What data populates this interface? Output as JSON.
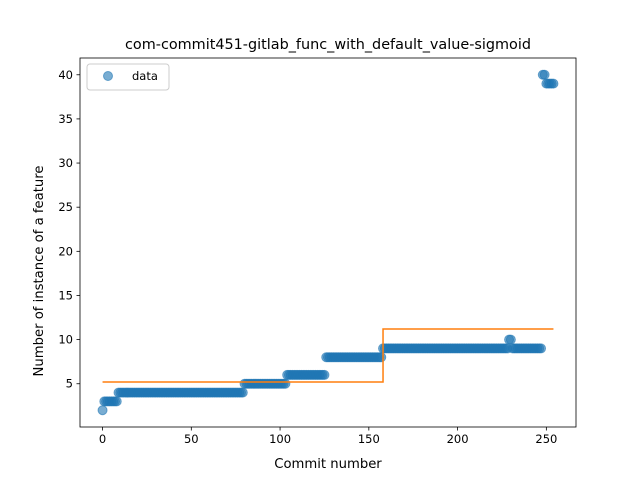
{
  "chart_data": {
    "type": "scatter",
    "title": "com-commit451-gitlab_func_with_default_value-sigmoid",
    "xlabel": "Commit number",
    "ylabel": "Number of instance of a feature",
    "xlim": [
      -12.7,
      266.7
    ],
    "ylim": [
      0.1,
      41.9
    ],
    "xticks": [
      0,
      50,
      100,
      150,
      200,
      250
    ],
    "yticks": [
      5,
      10,
      15,
      20,
      25,
      30,
      35,
      40
    ],
    "grid": false,
    "legend": {
      "position": "upper-left",
      "entries": [
        {
          "label": "data",
          "marker": "circle"
        }
      ]
    },
    "colors": {
      "data": "#1f77b4",
      "fit": "#ff7f0e"
    },
    "series": [
      {
        "name": "data",
        "kind": "scatter",
        "segments": [
          {
            "x_start": 0,
            "x_end": 0,
            "y": 2
          },
          {
            "x_start": 1,
            "x_end": 8,
            "y": 3
          },
          {
            "x_start": 9,
            "x_end": 79,
            "y": 4
          },
          {
            "x_start": 80,
            "x_end": 103,
            "y": 5
          },
          {
            "x_start": 104,
            "x_end": 125,
            "y": 6
          },
          {
            "x_start": 126,
            "x_end": 157,
            "y": 8
          },
          {
            "x_start": 158,
            "x_end": 228,
            "y": 9
          },
          {
            "x_start": 229,
            "x_end": 230,
            "y": 10
          },
          {
            "x_start": 231,
            "x_end": 247,
            "y": 9
          },
          {
            "x_start": 248,
            "x_end": 249,
            "y": 40
          },
          {
            "x_start": 250,
            "x_end": 254,
            "y": 39
          }
        ]
      },
      {
        "kind": "line",
        "x": [
          0,
          158,
          158,
          254
        ],
        "y": [
          5.2,
          5.2,
          11.2,
          11.2
        ]
      }
    ]
  }
}
